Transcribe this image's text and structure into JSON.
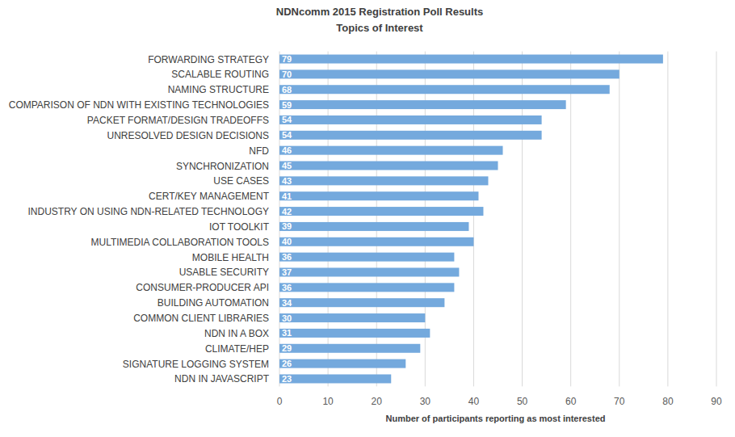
{
  "chart_data": {
    "type": "bar",
    "orientation": "horizontal",
    "title": "NDNcomm 2015 Registration Poll Results",
    "subtitle": "Topics of Interest",
    "x_label": "Number of participants reporting as most interested",
    "categories": [
      "FORWARDING STRATEGY",
      "SCALABLE ROUTING",
      "NAMING STRUCTURE",
      "COMPARISON OF NDN WITH EXISTING TECHNOLOGIES",
      "PACKET FORMAT/DESIGN TRADEOFFS",
      "UNRESOLVED DESIGN DECISIONS",
      "NFD",
      "SYNCHRONIZATION",
      "USE CASES",
      "CERT/KEY MANAGEMENT",
      "INDUSTRY ON USING NDN-RELATED TECHNOLOGY",
      "IOT TOOLKIT",
      "MULTIMEDIA COLLABORATION TOOLS",
      "MOBILE HEALTH",
      "USABLE SECURITY",
      "CONSUMER-PRODUCER API",
      "BUILDING AUTOMATION",
      "COMMON CLIENT LIBRARIES",
      "NDN IN A BOX",
      "CLIMATE/HEP",
      "SIGNATURE LOGGING SYSTEM",
      "NDN IN JAVASCRIPT"
    ],
    "values": [
      79,
      70,
      68,
      59,
      54,
      54,
      46,
      45,
      43,
      41,
      42,
      39,
      40,
      36,
      37,
      36,
      34,
      30,
      31,
      29,
      26,
      23
    ],
    "color": "#74a9dd",
    "xlim": [
      0,
      90
    ],
    "xticks": [
      0,
      10,
      20,
      30,
      40,
      50,
      60,
      70,
      80,
      90
    ],
    "grid": true,
    "data_labels": true
  }
}
